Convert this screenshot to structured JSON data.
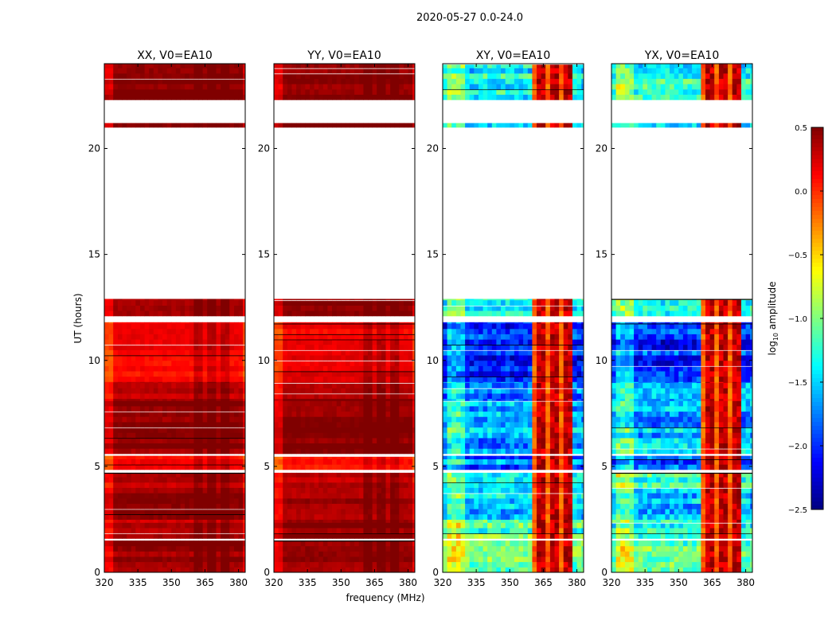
{
  "chart_data": {
    "type": "heatmap",
    "title": "2020-05-27 0.0-24.0",
    "xlabel": "frequency (MHz)",
    "ylabel": "UT (hours)",
    "xlim": [
      320,
      383
    ],
    "ylim": [
      0,
      24
    ],
    "xticks": [
      "320",
      "335",
      "350",
      "365",
      "380"
    ],
    "xtick_values": [
      320,
      335,
      350,
      365,
      380
    ],
    "yticks": [
      "0",
      "5",
      "10",
      "15",
      "20"
    ],
    "ytick_values": [
      0,
      5,
      10,
      15,
      20
    ],
    "colorbar": {
      "label": "log10 amplitude",
      "label_main": "log",
      "label_sub": "10",
      "label_rest": " amplitude",
      "range": [
        -2.5,
        0.5
      ],
      "colormap": "jet",
      "ticks": [
        "0.5",
        "0.0",
        "−0.5",
        "−1.0",
        "−1.5",
        "−2.0",
        "−2.5"
      ],
      "tick_values": [
        0.5,
        0.0,
        -0.5,
        -1.0,
        -1.5,
        -2.0,
        -2.5
      ]
    },
    "panels": [
      {
        "title": "XX, V0=EA10",
        "key": "xx"
      },
      {
        "title": "YY, V0=EA10",
        "key": "yy"
      },
      {
        "title": "XY, V0=EA10",
        "key": "xy"
      },
      {
        "title": "YX, V0=EA10",
        "key": "yx"
      }
    ],
    "cross_pol_bright_band_mhz": [
      360,
      378
    ],
    "segments": [
      {
        "t0": 0.0,
        "t1": 1.5,
        "xx": 0.45,
        "yy": 0.45,
        "xy": -1.0,
        "yx": -1.0
      },
      {
        "t0": 1.6,
        "t1": 2.5,
        "xx": 0.3,
        "yy": 0.45,
        "xy": -1.2,
        "yx": -1.2
      },
      {
        "t0": 2.5,
        "t1": 4.0,
        "xx": 0.42,
        "yy": 0.4,
        "xy": -1.5,
        "yx": -1.5
      },
      {
        "t0": 4.0,
        "t1": 4.7,
        "xx": 0.35,
        "yy": 0.35,
        "xy": -1.2,
        "yx": -1.2
      },
      {
        "t0": 4.85,
        "t1": 5.5,
        "xx": 0.1,
        "yy": 0.1,
        "xy": -1.8,
        "yx": -1.8
      },
      {
        "t0": 5.6,
        "t1": 8.2,
        "xx": 0.48,
        "yy": 0.46,
        "xy": -1.6,
        "yx": -1.6
      },
      {
        "t0": 8.2,
        "t1": 9.0,
        "xx": 0.35,
        "yy": 0.35,
        "xy": -1.7,
        "yx": -1.7
      },
      {
        "t0": 9.0,
        "t1": 11.8,
        "xx": 0.15,
        "yy": 0.15,
        "xy": -2.0,
        "yx": -2.0
      },
      {
        "t0": 12.1,
        "t1": 12.9,
        "xx": 0.35,
        "yy": 0.5,
        "xy": -1.3,
        "yx": -1.3
      },
      {
        "t0": 21.0,
        "t1": 21.2,
        "xx": 0.5,
        "yy": 0.5,
        "xy": -1.5,
        "yx": -1.5
      },
      {
        "t0": 22.3,
        "t1": 24.0,
        "xx": 0.5,
        "yy": 0.5,
        "xy": -1.4,
        "yx": -1.4
      }
    ]
  }
}
